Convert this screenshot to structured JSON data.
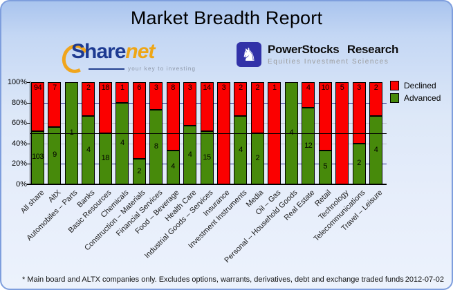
{
  "header": {
    "title": "Market Breadth Report"
  },
  "logos": {
    "sharenet": {
      "name_part1": "Share",
      "name_part2": "net",
      "tagline": "your key to investing"
    },
    "powerstocks": {
      "icon": "knight-icon",
      "icon_glyph": "♞",
      "title": "PowerStocks Research",
      "subtitle": "Equities Investment Sciences"
    }
  },
  "chart_data": {
    "type": "bar",
    "stacked": true,
    "normalized_to": "100%",
    "title": "Market Breadth Report",
    "categories": [
      "All share",
      "AltX",
      "Automobiles – Parts",
      "Banks",
      "Basic Resources",
      "Chemicals",
      "Construction – Materials",
      "Financial Services",
      "Food – Beverage",
      "Health Care",
      "Industrial Goods – Services",
      "Insurance",
      "Investment Instruments",
      "Media",
      "Oil – Gas",
      "Personal – Household Goods",
      "Real Estate",
      "Retail",
      "Technology",
      "Telecommunications",
      "Travel – Leisure"
    ],
    "series": [
      {
        "name": "Declined",
        "color": "#fb0000",
        "values": [
          94,
          7,
          0,
          2,
          18,
          1,
          6,
          3,
          8,
          3,
          14,
          3,
          2,
          2,
          1,
          0,
          4,
          10,
          5,
          3,
          2
        ]
      },
      {
        "name": "Advanced",
        "color": "#478a0b",
        "values": [
          103,
          9,
          1,
          4,
          18,
          4,
          2,
          8,
          4,
          4,
          15,
          0,
          4,
          2,
          0,
          4,
          12,
          5,
          0,
          2,
          4
        ]
      }
    ],
    "y_ticks": [
      "0%",
      "20%",
      "40%",
      "60%",
      "80%",
      "100%"
    ],
    "ylim": [
      0,
      100
    ],
    "grid": {
      "minor_color": "#b9bdc6",
      "major_color": "#2e2e8f",
      "reference_line_pct": 50
    },
    "legend_position": "right"
  },
  "footer": {
    "note": "* Main board and ALTX companies only. Excludes options, warrants, derivatives, debt and exchange traded funds",
    "date": "2012-07-02"
  }
}
